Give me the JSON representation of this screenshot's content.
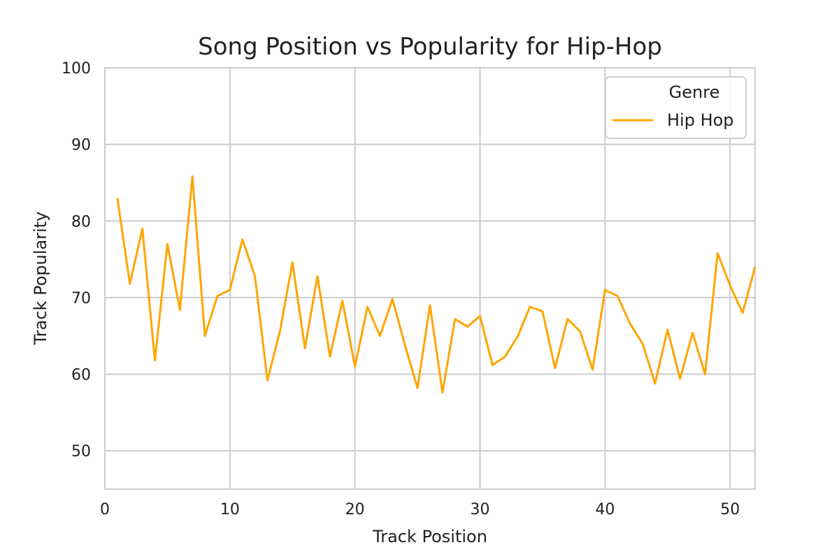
{
  "chart_data": {
    "type": "line",
    "title": "Song Position vs Popularity for Hip-Hop",
    "xlabel": "Track Position",
    "ylabel": "Track Popularity",
    "xlim": [
      0,
      52
    ],
    "ylim": [
      45,
      100
    ],
    "xticks": [
      0,
      10,
      20,
      30,
      40,
      50
    ],
    "yticks": [
      50,
      60,
      70,
      80,
      90,
      100
    ],
    "grid": true,
    "legend": {
      "title": "Genre",
      "placement": "top-right"
    },
    "series": [
      {
        "name": "Hip Hop",
        "color": "#FFA500",
        "x": [
          1,
          2,
          3,
          4,
          5,
          6,
          7,
          8,
          9,
          10,
          11,
          12,
          13,
          14,
          15,
          16,
          17,
          18,
          19,
          20,
          21,
          22,
          23,
          24,
          25,
          26,
          27,
          28,
          29,
          30,
          31,
          32,
          33,
          34,
          35,
          36,
          37,
          38,
          39,
          40,
          41,
          42,
          43,
          44,
          45,
          46,
          47,
          48,
          49,
          50,
          51,
          52
        ],
        "y": [
          83.0,
          71.8,
          79.0,
          61.8,
          77.0,
          68.4,
          85.8,
          65.0,
          70.2,
          71.0,
          77.6,
          72.8,
          59.2,
          65.6,
          74.6,
          63.4,
          72.8,
          62.3,
          69.6,
          61.0,
          68.8,
          65.0,
          69.8,
          63.8,
          58.2,
          69.0,
          57.6,
          67.2,
          66.2,
          67.6,
          61.2,
          62.3,
          64.9,
          68.8,
          68.2,
          60.8,
          67.2,
          65.6,
          60.6,
          71.0,
          70.2,
          66.6,
          64.0,
          58.8,
          65.8,
          59.4,
          65.4,
          60.0,
          75.8,
          71.6,
          68.0,
          74.0
        ]
      }
    ]
  }
}
